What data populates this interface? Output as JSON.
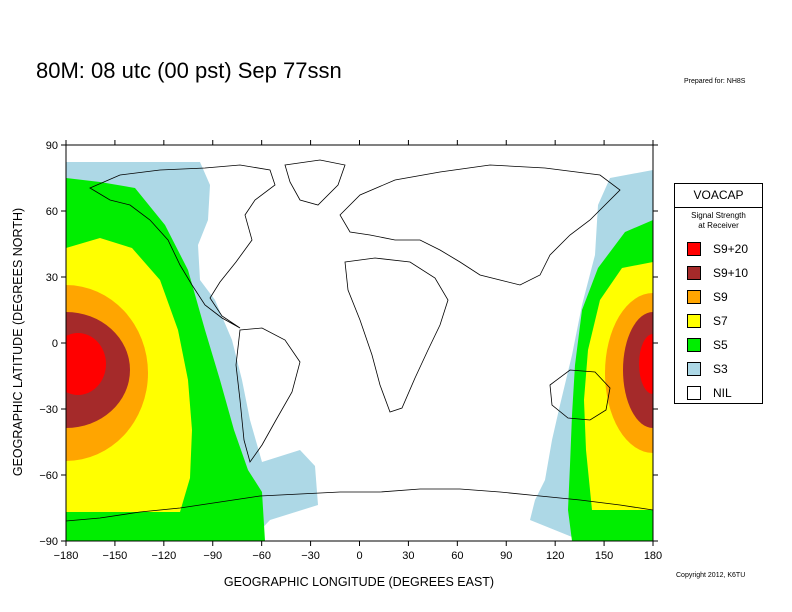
{
  "title": "80M:  08 utc (00 pst) Sep 77ssn",
  "prepared_for": "Prepared for: NH8S",
  "copyright": "Copyright 2012, K6TU",
  "axes": {
    "xlabel": "GEOGRAPHIC LONGITUDE (DEGREES EAST)",
    "ylabel": "GEOGRAPHIC LATITUDE (DEGREES NORTH)",
    "xlim": [
      -180,
      180
    ],
    "ylim": [
      -90,
      90
    ],
    "xticks": [
      -180,
      -150,
      -120,
      -90,
      -60,
      -30,
      0,
      30,
      60,
      90,
      120,
      150,
      180
    ],
    "yticks": [
      90,
      60,
      30,
      0,
      -30,
      -60,
      -90
    ],
    "xtick_labels": [
      "−180",
      "−150",
      "−120",
      "−90",
      "−60",
      "−30",
      "0",
      "30",
      "60",
      "90",
      "120",
      "150",
      "180"
    ],
    "ytick_labels": [
      "90",
      "60",
      "30",
      "0",
      "−30",
      "−60",
      "−90"
    ]
  },
  "legend": {
    "title": "VOACAP",
    "subtitle_line1": "Signal Strength",
    "subtitle_line2": "at Receiver",
    "items": [
      {
        "label": "S9+20",
        "color": "#ff0000"
      },
      {
        "label": "S9+10",
        "color": "#a52a2a"
      },
      {
        "label": "S9",
        "color": "#ffa500"
      },
      {
        "label": "S7",
        "color": "#ffff00"
      },
      {
        "label": "S5",
        "color": "#00ee00"
      },
      {
        "label": "S3",
        "color": "#add8e6"
      },
      {
        "label": "NIL",
        "color": "#ffffff"
      }
    ]
  },
  "transmitter": {
    "longitude": -172,
    "latitude": -10
  }
}
